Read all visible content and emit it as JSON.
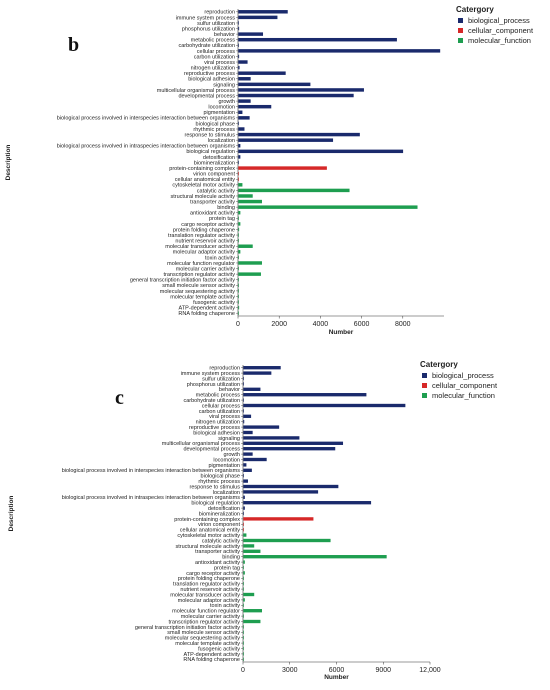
{
  "colors": {
    "biological_process": "#1a2a6c",
    "cellular_component": "#d62828",
    "molecular_function": "#1e9e50"
  },
  "chart_data": [
    {
      "type": "bar",
      "orientation": "horizontal",
      "panel_label": "b",
      "ylabel": "Description",
      "xlabel": "Number",
      "legend_title": "Catergory",
      "legend_position": "top-right",
      "legend": [
        {
          "key": "biological_process",
          "label": "biological_process"
        },
        {
          "key": "cellular_component",
          "label": "cellular_component"
        },
        {
          "key": "molecular_function",
          "label": "molecular_function"
        }
      ],
      "xlim": [
        0,
        10000
      ],
      "xticks": [
        0,
        2000,
        4000,
        6000,
        8000
      ],
      "xtick_labels": [
        "0",
        "2000",
        "4000",
        "6000",
        "8000"
      ],
      "categories": [
        "reproduction",
        "immune system process",
        "sulfur utilization",
        "phosphorus utilization",
        "behavior",
        "metabolic process",
        "carbohydrate utilization",
        "cellular process",
        "carbon utilization",
        "viral process",
        "nitrogen utilization",
        "reproductive process",
        "biological adhesion",
        "signaling",
        "multicellular organismal process",
        "developmental process",
        "growth",
        "locomotion",
        "pigmentation",
        "biological process involved in interspecies interaction between organisms",
        "biological phase",
        "rhythmic process",
        "response to stimulus",
        "localization",
        "biological process involved in intraspecies interaction between organisms",
        "biological regulation",
        "detoxification",
        "biomineralization",
        "protein-containing complex",
        "virion component",
        "cellular anatomical entity",
        "cytoskeletal motor activity",
        "catalytic activity",
        "structural molecule activity",
        "transporter activity",
        "binding",
        "antioxidant activity",
        "protein tag",
        "cargo receptor activity",
        "protein folding chaperone",
        "translation regulator activity",
        "nutrient reservoir activity",
        "molecular transducer activity",
        "molecular adaptor activity",
        "toxin activity",
        "molecular function regulator",
        "molecular carrier activity",
        "transcription regulator activity",
        "general transcription initiation factor activity",
        "small molecule sensor activity",
        "molecular sequestering activity",
        "molecular template activity",
        "fusogenic activity",
        "ATP-dependent activity",
        "RNA folding chaperone"
      ],
      "groups": [
        "biological_process",
        "biological_process",
        "biological_process",
        "biological_process",
        "biological_process",
        "biological_process",
        "biological_process",
        "biological_process",
        "biological_process",
        "biological_process",
        "biological_process",
        "biological_process",
        "biological_process",
        "biological_process",
        "biological_process",
        "biological_process",
        "biological_process",
        "biological_process",
        "biological_process",
        "biological_process",
        "biological_process",
        "biological_process",
        "biological_process",
        "biological_process",
        "biological_process",
        "biological_process",
        "biological_process",
        "biological_process",
        "cellular_component",
        "cellular_component",
        "cellular_component",
        "molecular_function",
        "molecular_function",
        "molecular_function",
        "molecular_function",
        "molecular_function",
        "molecular_function",
        "molecular_function",
        "molecular_function",
        "molecular_function",
        "molecular_function",
        "molecular_function",
        "molecular_function",
        "molecular_function",
        "molecular_function",
        "molecular_function",
        "molecular_function",
        "molecular_function",
        "molecular_function",
        "molecular_function",
        "molecular_function",
        "molecular_function",
        "molecular_function",
        "molecular_function",
        "molecular_function"
      ],
      "values": [
        2400,
        1900,
        10,
        40,
        1200,
        7700,
        30,
        9800,
        40,
        450,
        60,
        2300,
        600,
        3500,
        6100,
        5600,
        600,
        1600,
        200,
        550,
        20,
        300,
        5900,
        4600,
        100,
        8000,
        100,
        20,
        4300,
        10,
        30,
        200,
        5400,
        700,
        1150,
        8700,
        100,
        30,
        100,
        40,
        20,
        10,
        700,
        100,
        30,
        1150,
        20,
        1100,
        10,
        10,
        10,
        10,
        10,
        40,
        10
      ]
    },
    {
      "type": "bar",
      "orientation": "horizontal",
      "panel_label": "c",
      "ylabel": "Description",
      "xlabel": "Number",
      "legend_title": "Catergory",
      "legend_position": "top-right",
      "legend": [
        {
          "key": "biological_process",
          "label": "biological_process"
        },
        {
          "key": "cellular_component",
          "label": "cellular_component"
        },
        {
          "key": "molecular_function",
          "label": "molecular_function"
        }
      ],
      "xlim": [
        0,
        12000
      ],
      "xticks": [
        0,
        3000,
        6000,
        9000,
        12000
      ],
      "xtick_labels": [
        "0",
        "3000",
        "6000",
        "9000",
        "12,000"
      ],
      "categories": [
        "reproduction",
        "immune system process",
        "sulfur utilization",
        "phosphorus utilization",
        "behavior",
        "metabolic process",
        "carbohydrate utilization",
        "cellular process",
        "carbon utilization",
        "viral process",
        "nitrogen utilization",
        "reproductive process",
        "biological adhesion",
        "signaling",
        "multicellular organismal process",
        "developmental process",
        "growth",
        "locomotion",
        "pigmentation",
        "biological process involved in interspecies interaction between organisms",
        "biological phase",
        "rhythmic process",
        "response to stimulus",
        "localization",
        "biological process involved in intraspecies interaction between organisms",
        "biological regulation",
        "detoxification",
        "biomineralization",
        "protein-containing complex",
        "virion component",
        "cellular anatomical entity",
        "cytoskeletal motor activity",
        "catalytic activity",
        "structural molecule activity",
        "transporter activity",
        "binding",
        "antioxidant activity",
        "protein tag",
        "cargo receptor activity",
        "protein folding chaperone",
        "translation regulator activity",
        "nutrient reservoir activity",
        "molecular transducer activity",
        "molecular adaptor activity",
        "toxin activity",
        "molecular function regulator",
        "molecular carrier activity",
        "transcription regulator activity",
        "general transcription initiation factor activity",
        "small molecule sensor activity",
        "molecular sequestering activity",
        "molecular template activity",
        "fusogenic activity",
        "ATP-dependent activity",
        "RNA folding chaperone"
      ],
      "groups": [
        "biological_process",
        "biological_process",
        "biological_process",
        "biological_process",
        "biological_process",
        "biological_process",
        "biological_process",
        "biological_process",
        "biological_process",
        "biological_process",
        "biological_process",
        "biological_process",
        "biological_process",
        "biological_process",
        "biological_process",
        "biological_process",
        "biological_process",
        "biological_process",
        "biological_process",
        "biological_process",
        "biological_process",
        "biological_process",
        "biological_process",
        "biological_process",
        "biological_process",
        "biological_process",
        "biological_process",
        "biological_process",
        "cellular_component",
        "cellular_component",
        "cellular_component",
        "molecular_function",
        "molecular_function",
        "molecular_function",
        "molecular_function",
        "molecular_function",
        "molecular_function",
        "molecular_function",
        "molecular_function",
        "molecular_function",
        "molecular_function",
        "molecular_function",
        "molecular_function",
        "molecular_function",
        "molecular_function",
        "molecular_function",
        "molecular_function",
        "molecular_function",
        "molecular_function",
        "molecular_function",
        "molecular_function",
        "molecular_function",
        "molecular_function",
        "molecular_function",
        "molecular_function"
      ],
      "values": [
        2400,
        1800,
        10,
        40,
        1100,
        7900,
        30,
        10400,
        40,
        500,
        60,
        2300,
        600,
        3600,
        6400,
        5900,
        600,
        1500,
        200,
        550,
        20,
        300,
        6100,
        4800,
        100,
        8200,
        100,
        20,
        4500,
        10,
        30,
        200,
        5600,
        700,
        1100,
        9200,
        100,
        30,
        100,
        40,
        20,
        10,
        700,
        100,
        30,
        1200,
        20,
        1100,
        10,
        10,
        10,
        10,
        10,
        40,
        10
      ]
    }
  ]
}
